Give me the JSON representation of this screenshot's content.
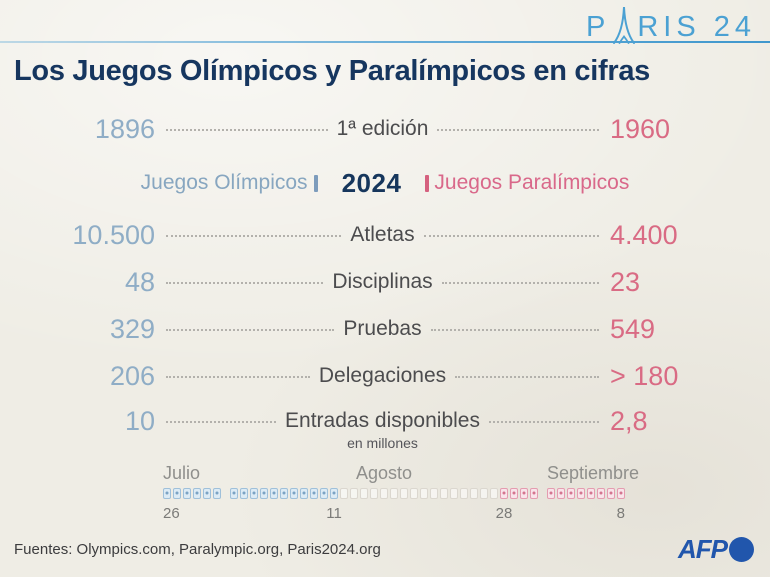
{
  "header": {
    "logo_left": "P",
    "logo_right": "RIS 24",
    "title": "Los Juegos Olímpicos y Paralímpicos en cifras"
  },
  "edition_row": {
    "olympic": "1896",
    "label": "1ª edición",
    "paralympic": "1960"
  },
  "legend": {
    "olympic": "Juegos Olímpicos",
    "year": "2024",
    "paralympic": "Juegos Paralímpicos"
  },
  "stats": [
    {
      "olympic": "10.500",
      "label": "Atletas",
      "paralympic": "4.400"
    },
    {
      "olympic": "48",
      "label": "Disciplinas",
      "paralympic": "23"
    },
    {
      "olympic": "329",
      "label": "Pruebas",
      "paralympic": "549"
    },
    {
      "olympic": "206",
      "label": "Delegaciones",
      "paralympic": "> 180"
    },
    {
      "olympic": "10",
      "label": "Entradas disponibles",
      "sublabel": "en millones",
      "paralympic": "2,8"
    }
  ],
  "timeline": {
    "months": [
      {
        "label": "Julio",
        "align": "left",
        "groups": [
          {
            "type": "olympic",
            "count": 6
          }
        ]
      },
      {
        "label": "Agosto",
        "align": "center",
        "groups": [
          {
            "type": "olympic",
            "count": 11
          },
          {
            "type": "empty",
            "count": 16
          },
          {
            "type": "paralympic",
            "count": 4
          }
        ]
      },
      {
        "label": "Septiembre",
        "align": "center",
        "groups": [
          {
            "type": "paralympic",
            "count": 8
          }
        ]
      }
    ],
    "date_labels": [
      {
        "text": "26",
        "month": 0,
        "cell": 0,
        "anchor": "left"
      },
      {
        "text": "11",
        "month": 1,
        "cell": 10,
        "anchor": "center"
      },
      {
        "text": "28",
        "month": 1,
        "cell": 27,
        "anchor": "center"
      },
      {
        "text": "8",
        "month": 2,
        "cell": 7,
        "anchor": "right"
      }
    ]
  },
  "footer": {
    "sources": "Fuentes: Olympics.com, Paralympic.org, Paris2024.org",
    "brand": "AFP"
  },
  "colors": {
    "olympic_blue": "#8fadc6",
    "paralympic_pink": "#d96b84",
    "navy": "#16365f",
    "logo_blue": "#4ba1d3",
    "afp_blue": "#2156ac",
    "paper": "#efede5"
  },
  "chart_data": {
    "type": "table",
    "title": "Los Juegos Olímpicos y Paralímpicos en cifras",
    "categories": [
      "1ª edición",
      "Atletas",
      "Disciplinas",
      "Pruebas",
      "Delegaciones",
      "Entradas disponibles (en millones)"
    ],
    "series": [
      {
        "name": "Juegos Olímpicos 2024",
        "values": [
          "1896",
          "10.500",
          "48",
          "329",
          "206",
          "10"
        ]
      },
      {
        "name": "Juegos Paralímpicos 2024",
        "values": [
          "1960",
          "4.400",
          "23",
          "549",
          "> 180",
          "2,8"
        ]
      }
    ],
    "timeline": {
      "olympic_period": {
        "start": "26 julio",
        "end": "11 agosto"
      },
      "paralympic_period": {
        "start": "28 agosto",
        "end": "8 septiembre"
      }
    },
    "legend_position": "top-center"
  }
}
